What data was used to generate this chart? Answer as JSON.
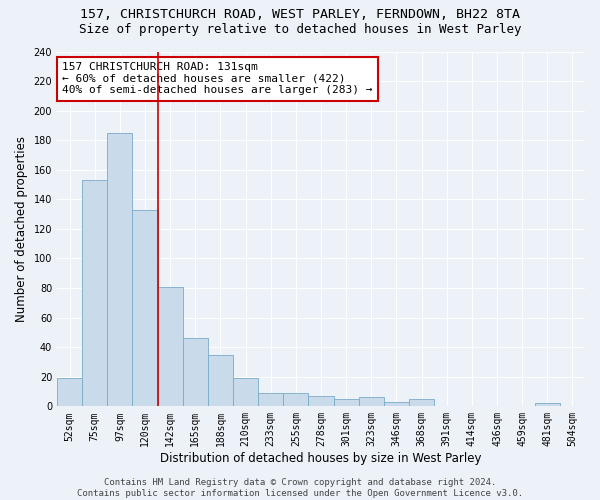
{
  "title": "157, CHRISTCHURCH ROAD, WEST PARLEY, FERNDOWN, BH22 8TA",
  "subtitle": "Size of property relative to detached houses in West Parley",
  "xlabel": "Distribution of detached houses by size in West Parley",
  "ylabel": "Number of detached properties",
  "bar_color": "#c9daea",
  "bar_edge_color": "#7aaac8",
  "background_color": "#edf2f9",
  "grid_color": "#ffffff",
  "categories": [
    "52sqm",
    "75sqm",
    "97sqm",
    "120sqm",
    "142sqm",
    "165sqm",
    "188sqm",
    "210sqm",
    "233sqm",
    "255sqm",
    "278sqm",
    "301sqm",
    "323sqm",
    "346sqm",
    "368sqm",
    "391sqm",
    "414sqm",
    "436sqm",
    "459sqm",
    "481sqm",
    "504sqm"
  ],
  "values": [
    19,
    153,
    185,
    133,
    81,
    46,
    35,
    19,
    9,
    9,
    7,
    5,
    6,
    3,
    5,
    0,
    0,
    0,
    0,
    2,
    0
  ],
  "vline_x": 3.5,
  "vline_color": "#cc0000",
  "annotation_text": "157 CHRISTCHURCH ROAD: 131sqm\n← 60% of detached houses are smaller (422)\n40% of semi-detached houses are larger (283) →",
  "annotation_box_color": "#ffffff",
  "annotation_box_edge": "#cc0000",
  "ylim": [
    0,
    240
  ],
  "yticks": [
    0,
    20,
    40,
    60,
    80,
    100,
    120,
    140,
    160,
    180,
    200,
    220,
    240
  ],
  "footer_text": "Contains HM Land Registry data © Crown copyright and database right 2024.\nContains public sector information licensed under the Open Government Licence v3.0.",
  "title_fontsize": 9.5,
  "subtitle_fontsize": 9,
  "xlabel_fontsize": 8.5,
  "ylabel_fontsize": 8.5,
  "tick_fontsize": 7,
  "annotation_fontsize": 8,
  "footer_fontsize": 6.5
}
